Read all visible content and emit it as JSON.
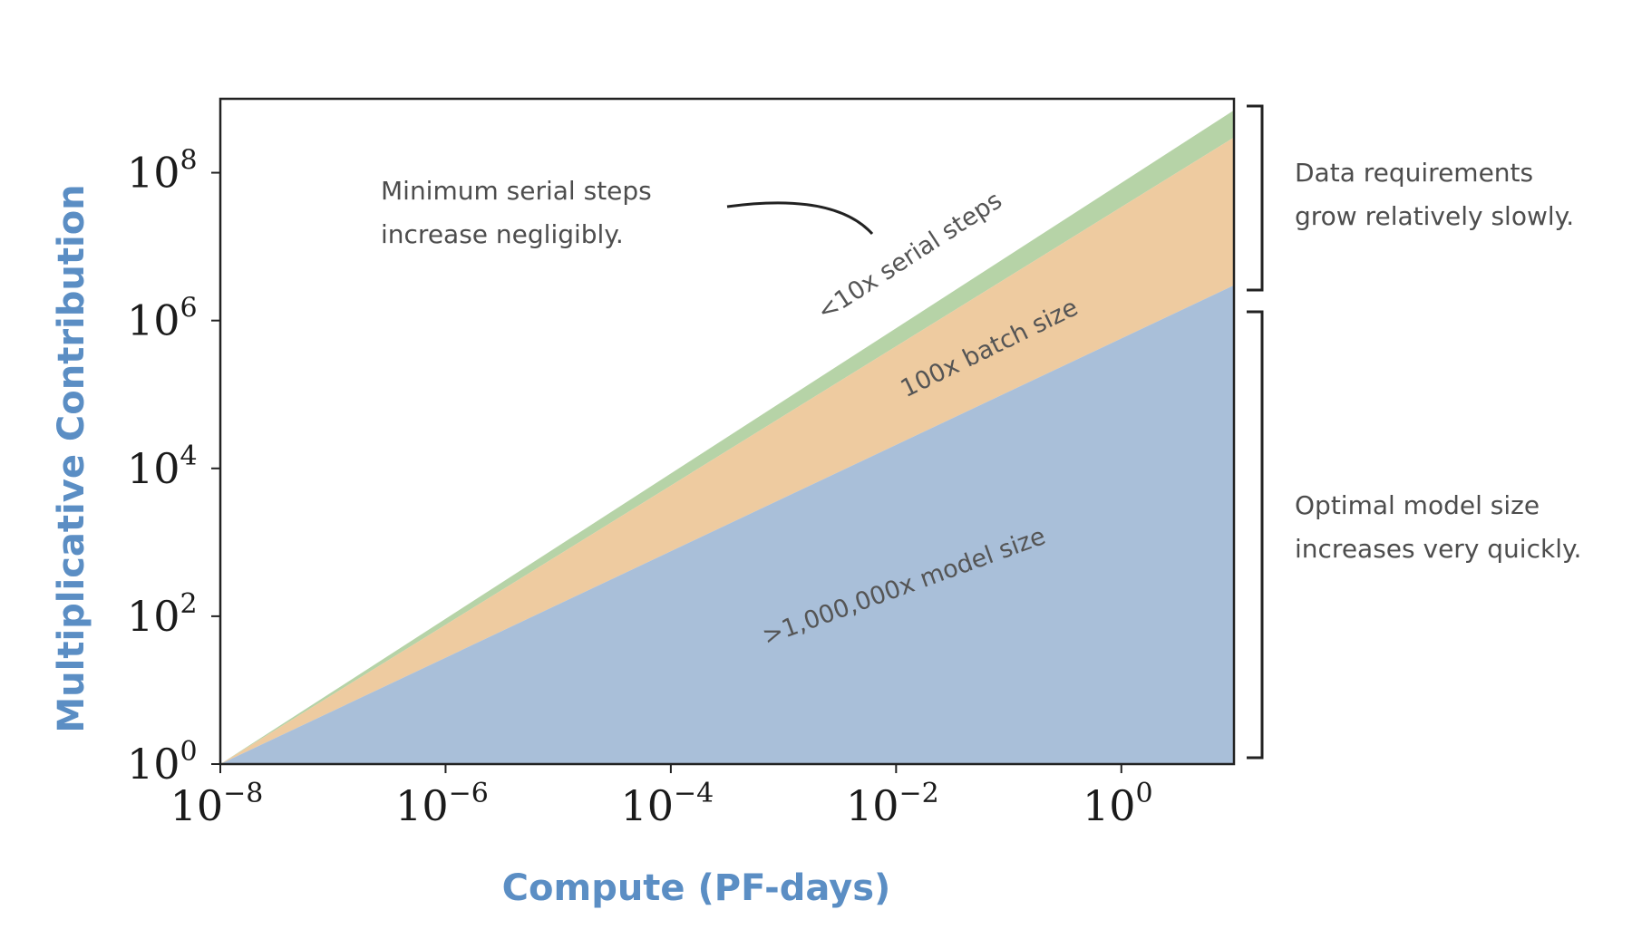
{
  "chart_data": {
    "type": "area",
    "stacked": true,
    "log_x": true,
    "log_y": true,
    "xlabel": "Compute (PF-days)",
    "ylabel": "Multiplicative Contribution",
    "xlim": [
      1e-08,
      10
    ],
    "ylim": [
      1,
      1000000000.0
    ],
    "x_ticks": [
      {
        "base": "10",
        "exp": "−8",
        "value": 1e-08
      },
      {
        "base": "10",
        "exp": "−6",
        "value": 1e-06
      },
      {
        "base": "10",
        "exp": "−4",
        "value": 0.0001
      },
      {
        "base": "10",
        "exp": "−2",
        "value": 0.01
      },
      {
        "base": "10",
        "exp": "0",
        "value": 1
      }
    ],
    "y_ticks": [
      {
        "base": "10",
        "exp": "0",
        "value": 1
      },
      {
        "base": "10",
        "exp": "2",
        "value": 100
      },
      {
        "base": "10",
        "exp": "4",
        "value": 10000
      },
      {
        "base": "10",
        "exp": "6",
        "value": 1000000
      },
      {
        "base": "10",
        "exp": "8",
        "value": 100000000
      }
    ],
    "x": [
      1e-08,
      10
    ],
    "series": [
      {
        "name": "",
        "role": "model size",
        "upper": [
          1,
          3000000
        ],
        "color": "#a9bfd9"
      },
      {
        "name": "",
        "role": "batch size",
        "upper": [
          1,
          300000000
        ],
        "color": "#eecba0"
      },
      {
        "name": "",
        "role": "serial steps",
        "upper": [
          1,
          700000000
        ],
        "color": "#b6d3a7"
      }
    ],
    "band_labels": [
      {
        "text": "<10x serial steps",
        "series": 2
      },
      {
        "text": "100x batch size",
        "series": 1
      },
      {
        "text": ">1,000,000x model size",
        "series": 0
      }
    ],
    "annotations": [
      {
        "id": "serial-note",
        "lines": [
          "Minimum serial steps",
          "increase negligibly."
        ]
      },
      {
        "id": "data-note",
        "lines": [
          "Data requirements",
          "grow relatively slowly."
        ]
      },
      {
        "id": "model-note",
        "lines": [
          "Optimal model size",
          "increases very quickly."
        ]
      }
    ],
    "grid": false,
    "legend": "none"
  }
}
